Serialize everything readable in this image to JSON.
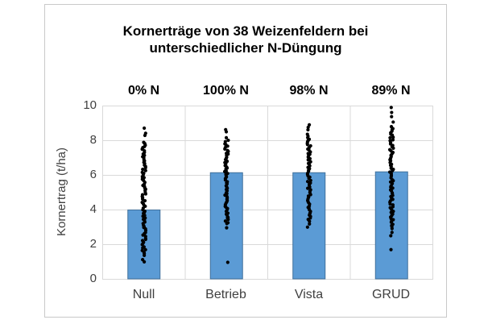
{
  "chart_data": {
    "type": "bar",
    "overlay": "scatter",
    "title": "Kornerträge von 38 Weizenfeldern bei unterschiedlicher N-Düngung",
    "title_lines": [
      "Kornerträge von 38 Weizenfeldern bei",
      "unterschiedlicher N-Düngung"
    ],
    "ylabel": "Kornertrag (t/ha)",
    "xlabel": "",
    "ylim": [
      0,
      10
    ],
    "y_tick_step": 2,
    "y_ticks": [
      "10",
      "8",
      "6",
      "4",
      "2",
      "0"
    ],
    "grid": true,
    "legend": "none",
    "categories": [
      "Null",
      "Betrieb",
      "Vista",
      "GRUD"
    ],
    "group_labels": [
      "0% N",
      "100% N",
      "98% N",
      "89% N"
    ],
    "bar_values": [
      4.0,
      6.15,
      6.15,
      6.2
    ],
    "series_points": [
      {
        "category": "Null",
        "dense_min": 1.4,
        "dense_max": 7.9,
        "dense_count": 80,
        "outliers": [
          8.7,
          8.45,
          8.3,
          1.15,
          1.0
        ]
      },
      {
        "category": "Betrieb",
        "dense_min": 3.2,
        "dense_max": 8.0,
        "dense_count": 62,
        "outliers": [
          8.65,
          8.5,
          8.15,
          2.95,
          1.0
        ]
      },
      {
        "category": "Vista",
        "dense_min": 3.35,
        "dense_max": 8.35,
        "dense_count": 62,
        "outliers": [
          8.9,
          8.75,
          8.6,
          3.2,
          3.0
        ]
      },
      {
        "category": "GRUD",
        "dense_min": 2.95,
        "dense_max": 8.8,
        "dense_count": 72,
        "outliers": [
          9.9,
          9.65,
          9.4,
          9.05,
          2.7,
          2.5,
          1.7
        ]
      }
    ],
    "colors": {
      "bar_fill": "#5b9bd5",
      "bar_border": "#41719c",
      "point": "#000000",
      "gridline": "#d9d9d9",
      "plot_border": "#d9d9d9",
      "axis_text": "#404040",
      "title_text": "#000000",
      "chart_border": "#c9c9c9"
    }
  }
}
